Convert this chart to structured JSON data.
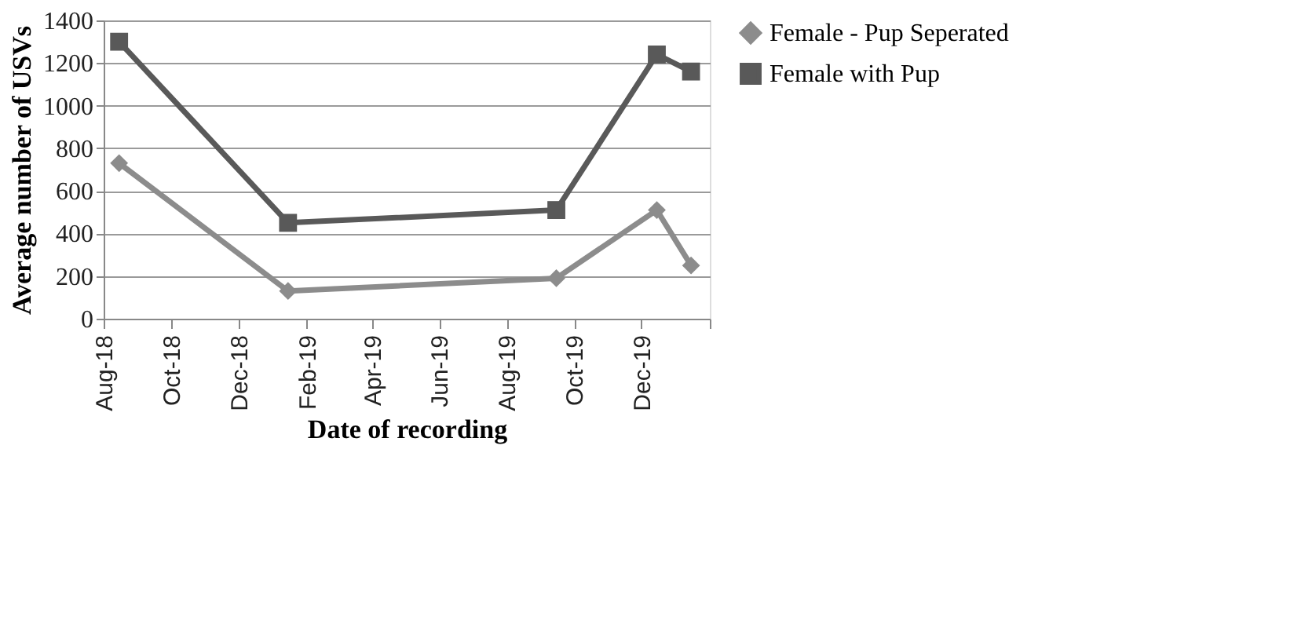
{
  "chart_data": {
    "type": "line",
    "xlabel": "Date of recording",
    "ylabel": "Average number of USVs",
    "x": [
      "2018-08-15",
      "2019-01-15",
      "2019-09-15",
      "2019-12-15",
      "2020-01-15"
    ],
    "series": [
      {
        "name": "Female - Pup Seperated",
        "color": "#8c8c8c",
        "marker": "diamond",
        "values": [
          730,
          130,
          190,
          510,
          250
        ]
      },
      {
        "name": "Female with Pup",
        "color": "#595959",
        "marker": "square",
        "values": [
          1300,
          450,
          510,
          1240,
          1160
        ]
      }
    ],
    "xlim": [
      "2018-08-01",
      "2020-02-01"
    ],
    "xticks": [
      {
        "value": "2018-08-01",
        "label": "Aug-18"
      },
      {
        "value": "2018-10-01",
        "label": "Oct-18"
      },
      {
        "value": "2018-12-01",
        "label": "Dec-18"
      },
      {
        "value": "2019-02-01",
        "label": "Feb-19"
      },
      {
        "value": "2019-04-01",
        "label": "Apr-19"
      },
      {
        "value": "2019-06-01",
        "label": "Jun-19"
      },
      {
        "value": "2019-08-01",
        "label": "Aug-19"
      },
      {
        "value": "2019-10-01",
        "label": "Oct-19"
      },
      {
        "value": "2019-12-01",
        "label": "Dec-19"
      },
      {
        "value": "2020-02-01",
        "label": null
      }
    ],
    "ylim": [
      0,
      1400
    ],
    "yticks": [
      0,
      200,
      400,
      600,
      800,
      1000,
      1200,
      1400
    ],
    "grid": "y",
    "legend": "right",
    "line_style": "solid"
  }
}
